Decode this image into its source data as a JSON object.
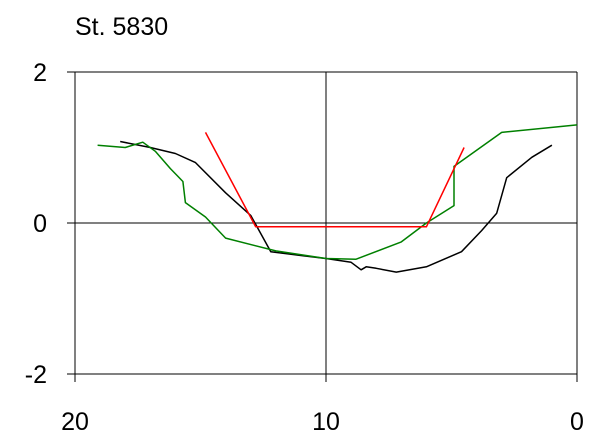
{
  "chart_data": {
    "type": "line",
    "title": "St. 5830",
    "xlabel": "",
    "ylabel": "",
    "xlim": [
      20,
      0
    ],
    "ylim": [
      -2,
      2
    ],
    "x_ticks": [
      20,
      10,
      0
    ],
    "y_ticks": [
      2,
      0,
      -2
    ],
    "x_tick_labels": [
      "20",
      "10",
      "0"
    ],
    "y_tick_labels": [
      "2",
      "0",
      "-2"
    ],
    "grid": true,
    "series": [
      {
        "color": "#000000",
        "points": [
          [
            18.2,
            1.08
          ],
          [
            17.0,
            1.0
          ],
          [
            16.0,
            0.92
          ],
          [
            15.2,
            0.8
          ],
          [
            14.0,
            0.4
          ],
          [
            13.0,
            0.1
          ],
          [
            12.2,
            -0.38
          ],
          [
            11.0,
            -0.43
          ],
          [
            10.0,
            -0.47
          ],
          [
            9.0,
            -0.52
          ],
          [
            8.6,
            -0.62
          ],
          [
            8.4,
            -0.58
          ],
          [
            8.0,
            -0.6
          ],
          [
            7.2,
            -0.65
          ],
          [
            6.0,
            -0.58
          ],
          [
            4.6,
            -0.38
          ],
          [
            3.8,
            -0.1
          ],
          [
            3.2,
            0.13
          ],
          [
            2.8,
            0.6
          ],
          [
            1.8,
            0.87
          ],
          [
            1.0,
            1.03
          ]
        ]
      },
      {
        "color": "#008000",
        "points": [
          [
            19.1,
            1.03
          ],
          [
            18.0,
            1.0
          ],
          [
            17.3,
            1.07
          ],
          [
            16.8,
            0.95
          ],
          [
            16.2,
            0.72
          ],
          [
            15.7,
            0.55
          ],
          [
            15.6,
            0.27
          ],
          [
            14.8,
            0.08
          ],
          [
            14.0,
            -0.2
          ],
          [
            12.0,
            -0.37
          ],
          [
            10.0,
            -0.47
          ],
          [
            8.8,
            -0.48
          ],
          [
            7.0,
            -0.25
          ],
          [
            6.0,
            0.0
          ],
          [
            4.9,
            0.23
          ],
          [
            4.9,
            0.75
          ],
          [
            3.0,
            1.2
          ],
          [
            0.0,
            1.3
          ]
        ]
      },
      {
        "color": "#ff0000",
        "points": [
          [
            14.8,
            1.2
          ],
          [
            12.8,
            -0.05
          ],
          [
            6.0,
            -0.05
          ],
          [
            4.5,
            1.0
          ]
        ]
      }
    ]
  }
}
